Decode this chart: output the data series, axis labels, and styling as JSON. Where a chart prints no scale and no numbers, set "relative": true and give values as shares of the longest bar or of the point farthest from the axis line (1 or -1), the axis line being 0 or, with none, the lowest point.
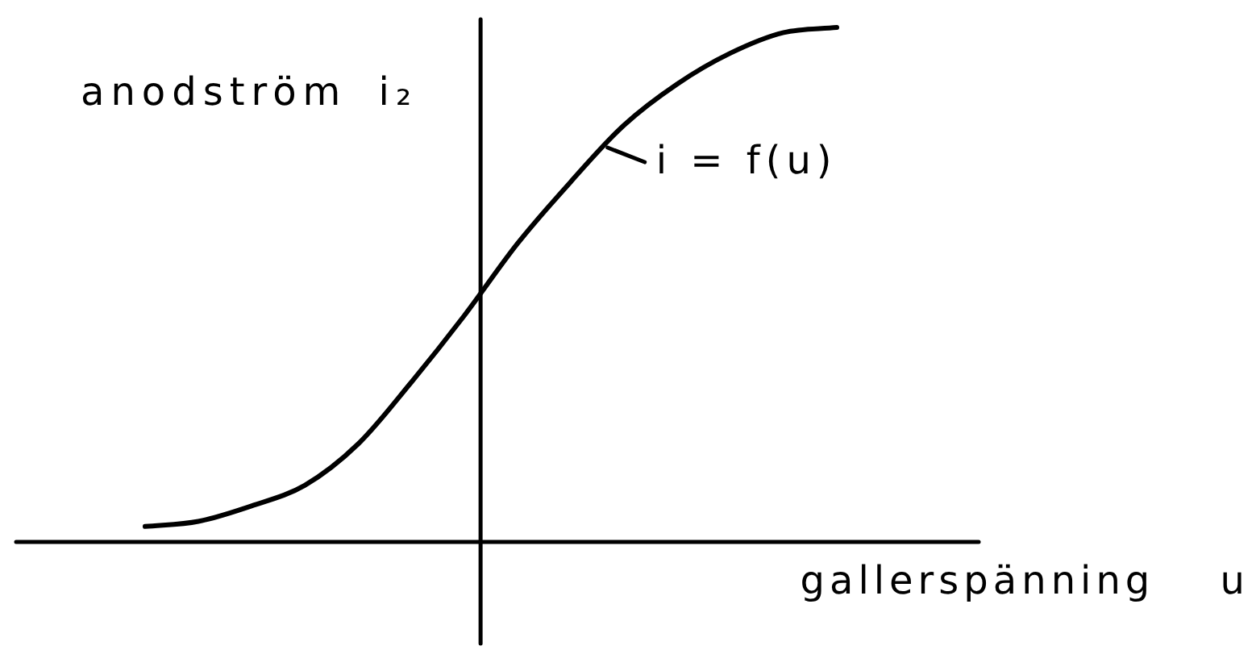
{
  "chart_data": {
    "type": "line",
    "xlabel": "gallerspänning u",
    "ylabel": "anodström i₂",
    "relative": true,
    "categories": [
      null,
      null,
      null,
      null,
      null,
      null,
      null,
      null,
      null,
      null,
      null,
      null,
      null,
      null
    ],
    "series": [
      {
        "name": "i = f(u)",
        "color": "#000000",
        "values": [
          0.03,
          0.04,
          0.07,
          0.11,
          0.19,
          0.31,
          0.44,
          0.58,
          0.7,
          0.81,
          0.89,
          0.95,
          0.99,
          1
        ]
      }
    ]
  }
}
